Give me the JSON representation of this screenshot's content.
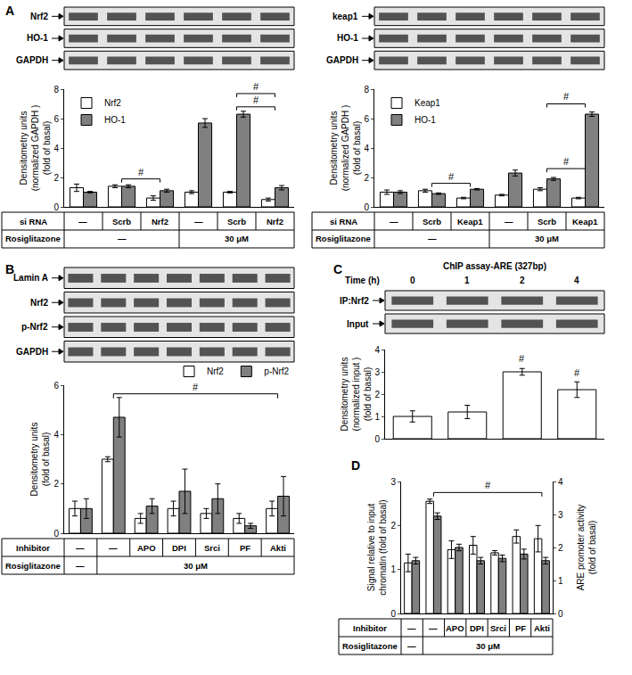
{
  "chart_data": [
    {
      "panel": "A",
      "type": "bar",
      "blots": [
        "Nrf2",
        "HO-1",
        "GAPDH"
      ],
      "y_label": [
        "Densitometry units",
        "(normalized GAPDH )",
        "(fold of basal)"
      ],
      "ylim": [
        0,
        8
      ],
      "yticks": [
        0,
        2,
        4,
        6,
        8
      ],
      "tick_labels": "y",
      "legend": "top-left",
      "series": [
        {
          "name": "Nrf2",
          "color": "#ffffff",
          "values": [
            1.3,
            1.4,
            0.6,
            1.0,
            1.0,
            0.5
          ],
          "errors": [
            0.25,
            0.1,
            0.15,
            0.1,
            0.05,
            0.1
          ]
        },
        {
          "name": "HO-1",
          "color": "#808080",
          "values": [
            1.0,
            1.4,
            1.1,
            5.7,
            6.3,
            1.3
          ],
          "errors": [
            0.05,
            0.1,
            0.1,
            0.3,
            0.2,
            0.15
          ]
        }
      ],
      "brackets": [
        {
          "from": 1,
          "to": 2,
          "y": 1.9,
          "label": "#"
        },
        {
          "from": 4,
          "to": 5,
          "y": 6.8,
          "label": "#"
        },
        {
          "from": 4,
          "to": 5,
          "y": 7.7,
          "label": "#"
        }
      ],
      "conditions": [
        {
          "label": "si RNA",
          "cells": [
            {
              "text": "—",
              "span": 1
            },
            {
              "text": "Scrb",
              "span": 1
            },
            {
              "text": "Nrf2",
              "span": 1
            },
            {
              "text": "—",
              "span": 1
            },
            {
              "text": "Scrb",
              "span": 1
            },
            {
              "text": "Nrf2",
              "span": 1
            }
          ]
        },
        {
          "label": "Rosiglitazone",
          "cells": [
            {
              "text": "—",
              "span": 3
            },
            {
              "text": "30 μM",
              "span": 3
            }
          ]
        }
      ]
    },
    {
      "type": "bar",
      "blots": [
        "keap1",
        "HO-1",
        "GAPDH"
      ],
      "y_label": [
        "Densitometry units",
        "(normalized GAPDH )",
        "(fold of basal)"
      ],
      "ylim": [
        0,
        8
      ],
      "yticks": [
        0,
        2,
        4,
        6,
        8
      ],
      "tick_labels": "y",
      "legend": "top-left",
      "series": [
        {
          "name": "Keap1",
          "color": "#ffffff",
          "values": [
            1.0,
            1.1,
            0.6,
            0.8,
            1.2,
            0.6
          ],
          "errors": [
            0.15,
            0.1,
            0.05,
            0.05,
            0.1,
            0.05
          ]
        },
        {
          "name": "HO-1",
          "color": "#808080",
          "values": [
            1.0,
            0.9,
            1.2,
            2.3,
            1.9,
            6.3
          ],
          "errors": [
            0.1,
            0.05,
            0.05,
            0.2,
            0.1,
            0.15
          ]
        }
      ],
      "brackets": [
        {
          "from": 1,
          "to": 2,
          "y": 1.6,
          "label": "#"
        },
        {
          "from": 4,
          "to": 5,
          "y": 2.6,
          "label": "#"
        },
        {
          "from": 4,
          "to": 5,
          "y": 7.0,
          "label": "#"
        }
      ],
      "conditions": [
        {
          "label": "si RNA",
          "cells": [
            {
              "text": "—",
              "span": 1
            },
            {
              "text": "Scrb",
              "span": 1
            },
            {
              "text": "Keap1",
              "span": 1
            },
            {
              "text": "—",
              "span": 1
            },
            {
              "text": "Scrb",
              "span": 1
            },
            {
              "text": "Keap1",
              "span": 1
            }
          ]
        },
        {
          "label": "Rosiglitazone",
          "cells": [
            {
              "text": "—",
              "span": 3
            },
            {
              "text": "30 μM",
              "span": 3
            }
          ]
        }
      ]
    },
    {
      "panel": "B",
      "type": "bar",
      "blots": [
        "Lamin A",
        "Nrf2",
        "p-Nrf2",
        "GAPDH"
      ],
      "y_label": [
        "Densitometry units",
        "(fold of basal)"
      ],
      "ylim": [
        0,
        6
      ],
      "yticks": [
        0,
        2,
        4,
        6
      ],
      "tick_labels": "y",
      "legend": "top-right",
      "series": [
        {
          "name": "Nrf2",
          "color": "#ffffff",
          "values": [
            1.0,
            3.0,
            0.6,
            1.0,
            0.8,
            0.6,
            1.0
          ],
          "errors": [
            0.3,
            0.1,
            0.2,
            0.3,
            0.2,
            0.2,
            0.3
          ]
        },
        {
          "name": "p-Nrf2",
          "color": "#808080",
          "values": [
            1.0,
            4.7,
            1.1,
            1.7,
            1.4,
            0.3,
            1.5
          ],
          "errors": [
            0.4,
            0.8,
            0.3,
            0.9,
            0.6,
            0.1,
            0.8
          ]
        }
      ],
      "brackets": [
        {
          "from": 1,
          "to": 6,
          "y": 5.65,
          "label": "#"
        }
      ],
      "conditions": [
        {
          "label": "Inhibitor",
          "cells": [
            {
              "text": "—",
              "span": 1
            },
            {
              "text": "—",
              "span": 1
            },
            {
              "text": "APO",
              "span": 1
            },
            {
              "text": "DPI",
              "span": 1
            },
            {
              "text": "Srci",
              "span": 1
            },
            {
              "text": "PF",
              "span": 1
            },
            {
              "text": "Akti",
              "span": 1
            }
          ]
        },
        {
          "label": "Rosiglitazone",
          "cells": [
            {
              "text": "—",
              "span": 1
            },
            {
              "text": "30 μM",
              "span": 6
            }
          ]
        }
      ]
    },
    {
      "panel": "C",
      "type": "bar",
      "title": "ChIP assay-ARE (327bp)",
      "lane_header": "Time (h)",
      "categories": [
        "0",
        "1",
        "2",
        "4"
      ],
      "blots": [
        "IP:Nrf2",
        "Input"
      ],
      "y_label": [
        "Densitometry units",
        "(normalized input )",
        "(fold of basal)"
      ],
      "ylim": [
        0,
        4
      ],
      "yticks": [
        0,
        1,
        2,
        3,
        4
      ],
      "tick_labels": "y",
      "series": [
        {
          "color": "#ffffff",
          "values": [
            1.0,
            1.2,
            3.0,
            2.2
          ],
          "errors": [
            0.25,
            0.3,
            0.15,
            0.35
          ]
        }
      ],
      "marks": [
        {
          "index": 2,
          "y": 3.3,
          "label": "#"
        },
        {
          "index": 3,
          "y": 2.65,
          "label": "#"
        }
      ]
    },
    {
      "panel": "D",
      "type": "bar",
      "y_label": [
        "Signal relative to input",
        "chromatin (fold of basal)"
      ],
      "y2_label": [
        "ARE promoter activity",
        "(fold of basal)"
      ],
      "ylim": [
        0,
        3
      ],
      "yticks": [
        0,
        1,
        2,
        3
      ],
      "y2lim": [
        0,
        4
      ],
      "y2ticks": [
        0,
        1,
        2,
        3,
        4
      ],
      "tick_labels": "y",
      "series": [
        {
          "color": "#ffffff",
          "values": [
            1.15,
            2.55,
            1.45,
            1.55,
            1.38,
            1.75,
            1.7
          ],
          "errors": [
            0.2,
            0.05,
            0.2,
            0.2,
            0.05,
            0.15,
            0.3
          ]
        },
        {
          "color": "#808080",
          "axis": "y2",
          "values": [
            1.6,
            2.95,
            2.0,
            1.6,
            1.67,
            1.8,
            1.6
          ],
          "errors": [
            0.1,
            0.1,
            0.1,
            0.1,
            0.1,
            0.15,
            0.1
          ]
        }
      ],
      "brackets": [
        {
          "from": 1,
          "to": 6,
          "y": 2.75,
          "label": "#"
        }
      ],
      "conditions": [
        {
          "label": "Inhibitor",
          "cells": [
            {
              "text": "—",
              "span": 1
            },
            {
              "text": "—",
              "span": 1
            },
            {
              "text": "APO",
              "span": 1
            },
            {
              "text": "DPI",
              "span": 1
            },
            {
              "text": "Srci",
              "span": 1
            },
            {
              "text": "PF",
              "span": 1
            },
            {
              "text": "Akti",
              "span": 1
            }
          ]
        },
        {
          "label": "Rosiglitazone",
          "cells": [
            {
              "text": "—",
              "span": 1
            },
            {
              "text": "30 μM",
              "span": 6
            }
          ]
        }
      ]
    }
  ]
}
